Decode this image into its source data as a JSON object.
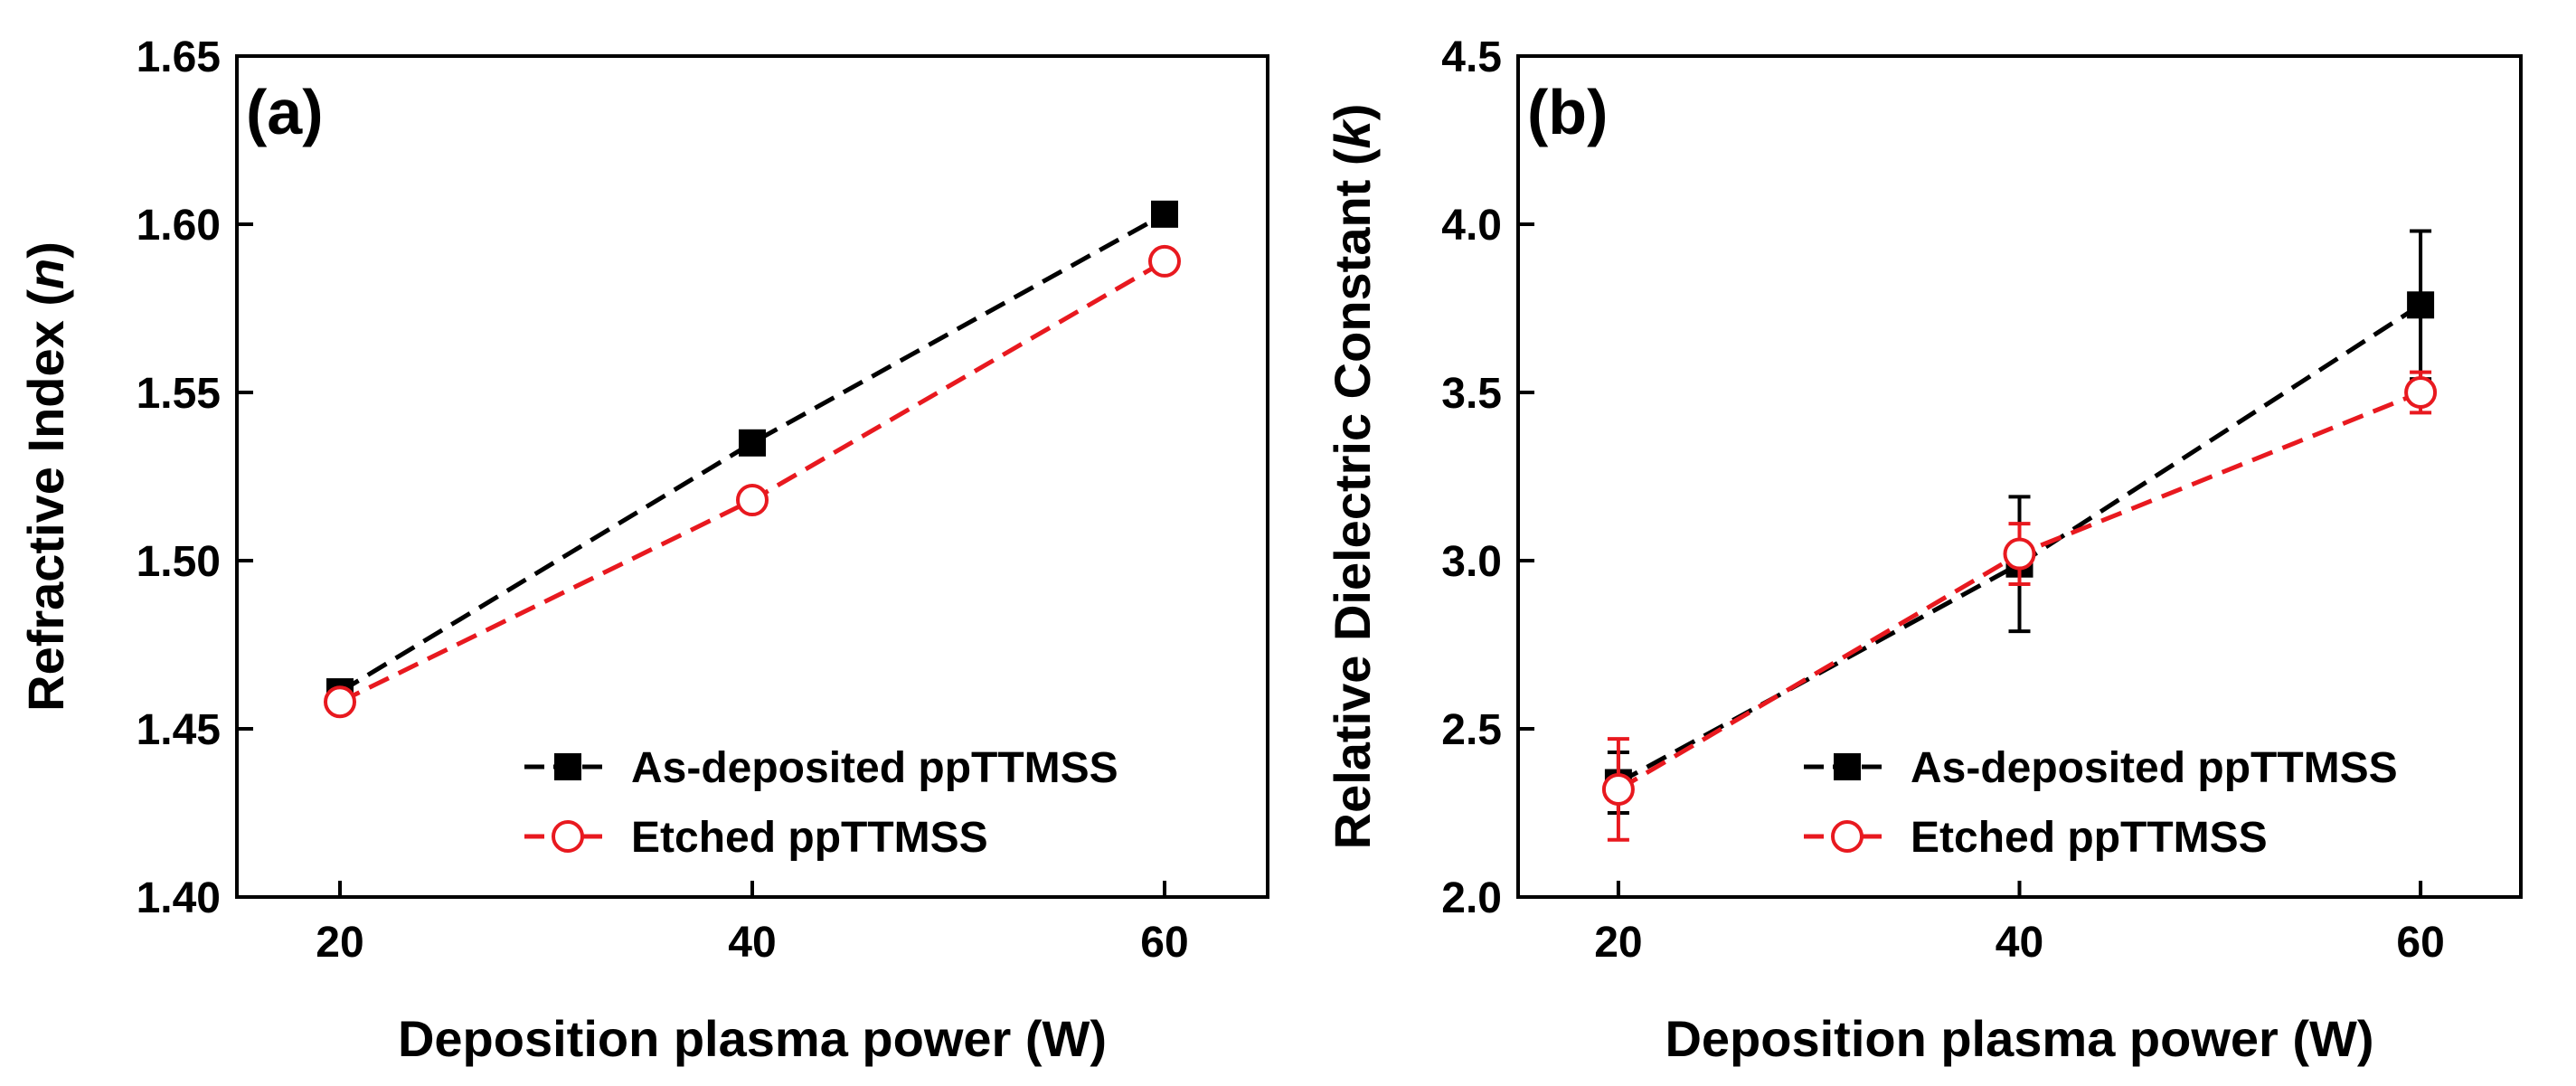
{
  "chart_data": [
    {
      "type": "line",
      "panel_label": "(a)",
      "xlabel": "Deposition plasma power (W)",
      "ylabel": "Refractive Index (",
      "ylabel_symbol": "n",
      "ylabel_close": ")",
      "xlim": [
        15,
        65
      ],
      "ylim": [
        1.4,
        1.65
      ],
      "x_ticks": [
        20,
        40,
        60
      ],
      "y_ticks": [
        1.4,
        1.45,
        1.5,
        1.55,
        1.6,
        1.65
      ],
      "y_tick_labels": [
        "1.40",
        "1.45",
        "1.50",
        "1.55",
        "1.60",
        "1.65"
      ],
      "x_tick_labels": [
        "20",
        "40",
        "60"
      ],
      "legend_position": "bottom-right",
      "x": [
        20,
        40,
        60
      ],
      "series": [
        {
          "name": "As-deposited ppTTMSS",
          "values": [
            1.461,
            1.535,
            1.603
          ],
          "errors": null,
          "color": "#000000",
          "marker": "filled-square"
        },
        {
          "name": "Etched ppTTMSS",
          "values": [
            1.458,
            1.518,
            1.589
          ],
          "errors": null,
          "color": "#e8191f",
          "marker": "open-circle"
        }
      ]
    },
    {
      "type": "line",
      "panel_label": "(b)",
      "xlabel": "Deposition plasma power (W)",
      "ylabel": "Relative Dielectric Constant (",
      "ylabel_symbol": "k",
      "ylabel_close": ")",
      "xlim": [
        15,
        65
      ],
      "ylim": [
        2.0,
        4.5
      ],
      "x_ticks": [
        20,
        40,
        60
      ],
      "y_ticks": [
        2.0,
        2.5,
        3.0,
        3.5,
        4.0,
        4.5
      ],
      "y_tick_labels": [
        "2.0",
        "2.5",
        "3.0",
        "3.5",
        "4.0",
        "4.5"
      ],
      "x_tick_labels": [
        "20",
        "40",
        "60"
      ],
      "legend_position": "bottom-right",
      "x": [
        20,
        40,
        60
      ],
      "series": [
        {
          "name": "As-deposited ppTTMSS",
          "values": [
            2.34,
            2.99,
            3.76
          ],
          "errors": [
            0.09,
            0.2,
            0.22
          ],
          "color": "#000000",
          "marker": "filled-square"
        },
        {
          "name": "Etched ppTTMSS",
          "values": [
            2.32,
            3.02,
            3.5
          ],
          "errors": [
            0.15,
            0.09,
            0.06
          ],
          "color": "#e8191f",
          "marker": "open-circle"
        }
      ]
    }
  ]
}
